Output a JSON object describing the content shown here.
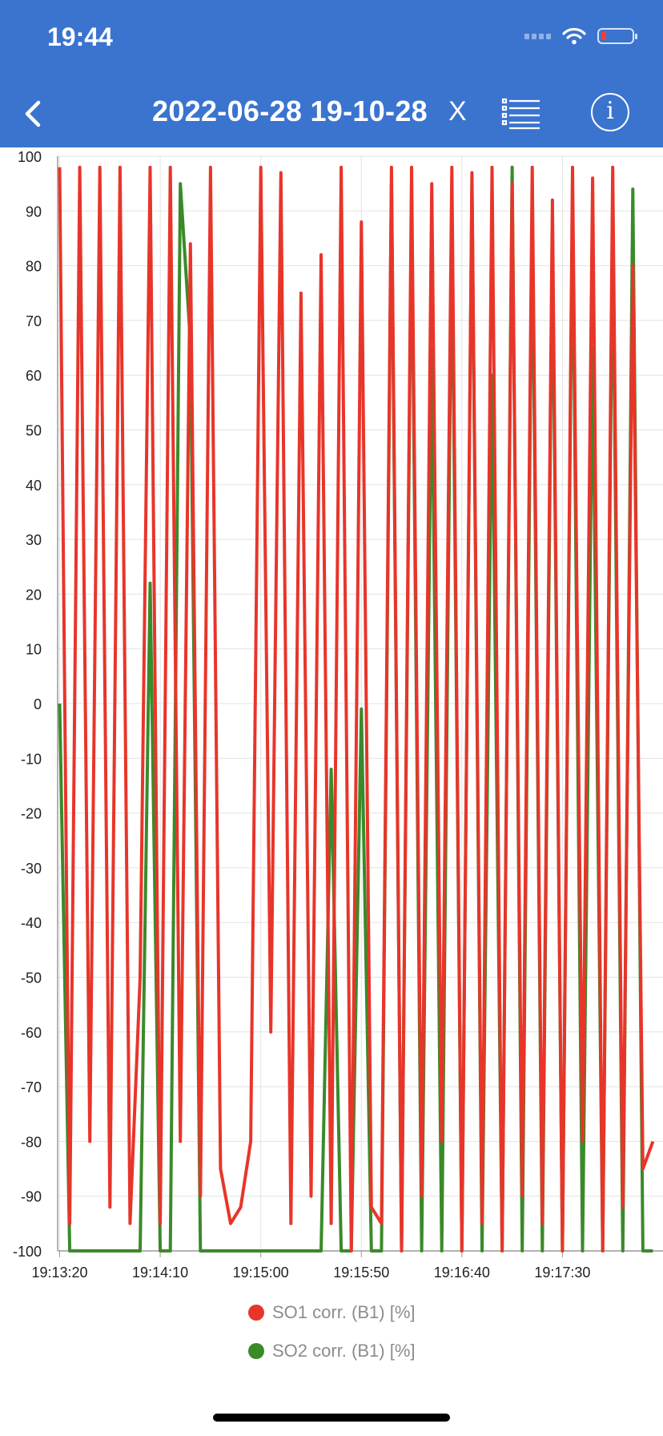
{
  "status_bar": {
    "time": "19:44"
  },
  "header": {
    "title": "2022-06-28 19-10-28",
    "close_label": "X"
  },
  "colors": {
    "header_bg": "#3a74cf",
    "so1": "#e8352a",
    "so2": "#3a8a2a"
  },
  "icons": {
    "back": "chevron-left-icon",
    "list": "list-icon",
    "info": "info-icon"
  },
  "chart_data": {
    "type": "line",
    "title": "",
    "xlabel": "",
    "ylabel": "",
    "ylim": [
      -100,
      100
    ],
    "yticks": [
      100,
      90,
      80,
      70,
      60,
      50,
      40,
      30,
      20,
      10,
      0,
      -10,
      -20,
      -30,
      -40,
      -50,
      -60,
      -70,
      -80,
      -90,
      -100
    ],
    "xlim": [
      "19:13:19",
      "19:18:20"
    ],
    "xticks": [
      "19:13:20",
      "19:14:10",
      "19:15:00",
      "19:15:50",
      "19:16:40",
      "19:17:30"
    ],
    "grid": true,
    "legend": "bottom",
    "x": [
      "19:13:20",
      "19:13:25",
      "19:13:30",
      "19:13:35",
      "19:13:40",
      "19:13:45",
      "19:13:50",
      "19:13:55",
      "19:14:00",
      "19:14:05",
      "19:14:10",
      "19:14:15",
      "19:14:20",
      "19:14:25",
      "19:14:30",
      "19:14:35",
      "19:14:40",
      "19:14:45",
      "19:14:50",
      "19:14:55",
      "19:15:00",
      "19:15:05",
      "19:15:10",
      "19:15:15",
      "19:15:20",
      "19:15:25",
      "19:15:30",
      "19:15:35",
      "19:15:40",
      "19:15:45",
      "19:15:50",
      "19:15:55",
      "19:16:00",
      "19:16:05",
      "19:16:10",
      "19:16:15",
      "19:16:20",
      "19:16:25",
      "19:16:30",
      "19:16:35",
      "19:16:40",
      "19:16:45",
      "19:16:50",
      "19:16:55",
      "19:17:00",
      "19:17:05",
      "19:17:10",
      "19:17:15",
      "19:17:20",
      "19:17:25",
      "19:17:30",
      "19:17:35",
      "19:17:40",
      "19:17:45",
      "19:17:50",
      "19:17:55",
      "19:18:00",
      "19:18:05",
      "19:18:10",
      "19:18:15"
    ],
    "series": [
      {
        "name": "SO1 corr. (B1) [%]",
        "color": "#e8352a",
        "values": [
          98,
          -95,
          98,
          -80,
          98,
          -92,
          98,
          -95,
          -50,
          98,
          -95,
          98,
          -80,
          84,
          -90,
          98,
          -85,
          -95,
          -92,
          -80,
          98,
          -60,
          97,
          -95,
          75,
          -90,
          82,
          -95,
          98,
          -100,
          88,
          -92,
          -95,
          98,
          -100,
          98,
          -90,
          95,
          -80,
          98,
          -100,
          97,
          -95,
          98,
          -100,
          95,
          -90,
          98,
          -95,
          92,
          -100,
          98,
          -80,
          96,
          -100,
          98,
          -92,
          80,
          -85,
          -80
        ]
      },
      {
        "name": "SO2 corr. (B1) [%]",
        "color": "#3a8a2a",
        "values": [
          0,
          -100,
          -100,
          -100,
          -100,
          -100,
          -100,
          -100,
          -100,
          22,
          -100,
          -100,
          95,
          66,
          -100,
          -100,
          -100,
          -100,
          -100,
          -100,
          -100,
          -100,
          -100,
          -100,
          -100,
          -100,
          -100,
          -12,
          -100,
          -100,
          -1,
          -100,
          -100,
          95,
          -100,
          92,
          -100,
          65,
          -100,
          88,
          -100,
          95,
          -100,
          60,
          -100,
          98,
          -100,
          90,
          -100,
          85,
          -100,
          92,
          -100,
          65,
          -100,
          88,
          -100,
          94,
          -100,
          -100
        ]
      }
    ]
  }
}
